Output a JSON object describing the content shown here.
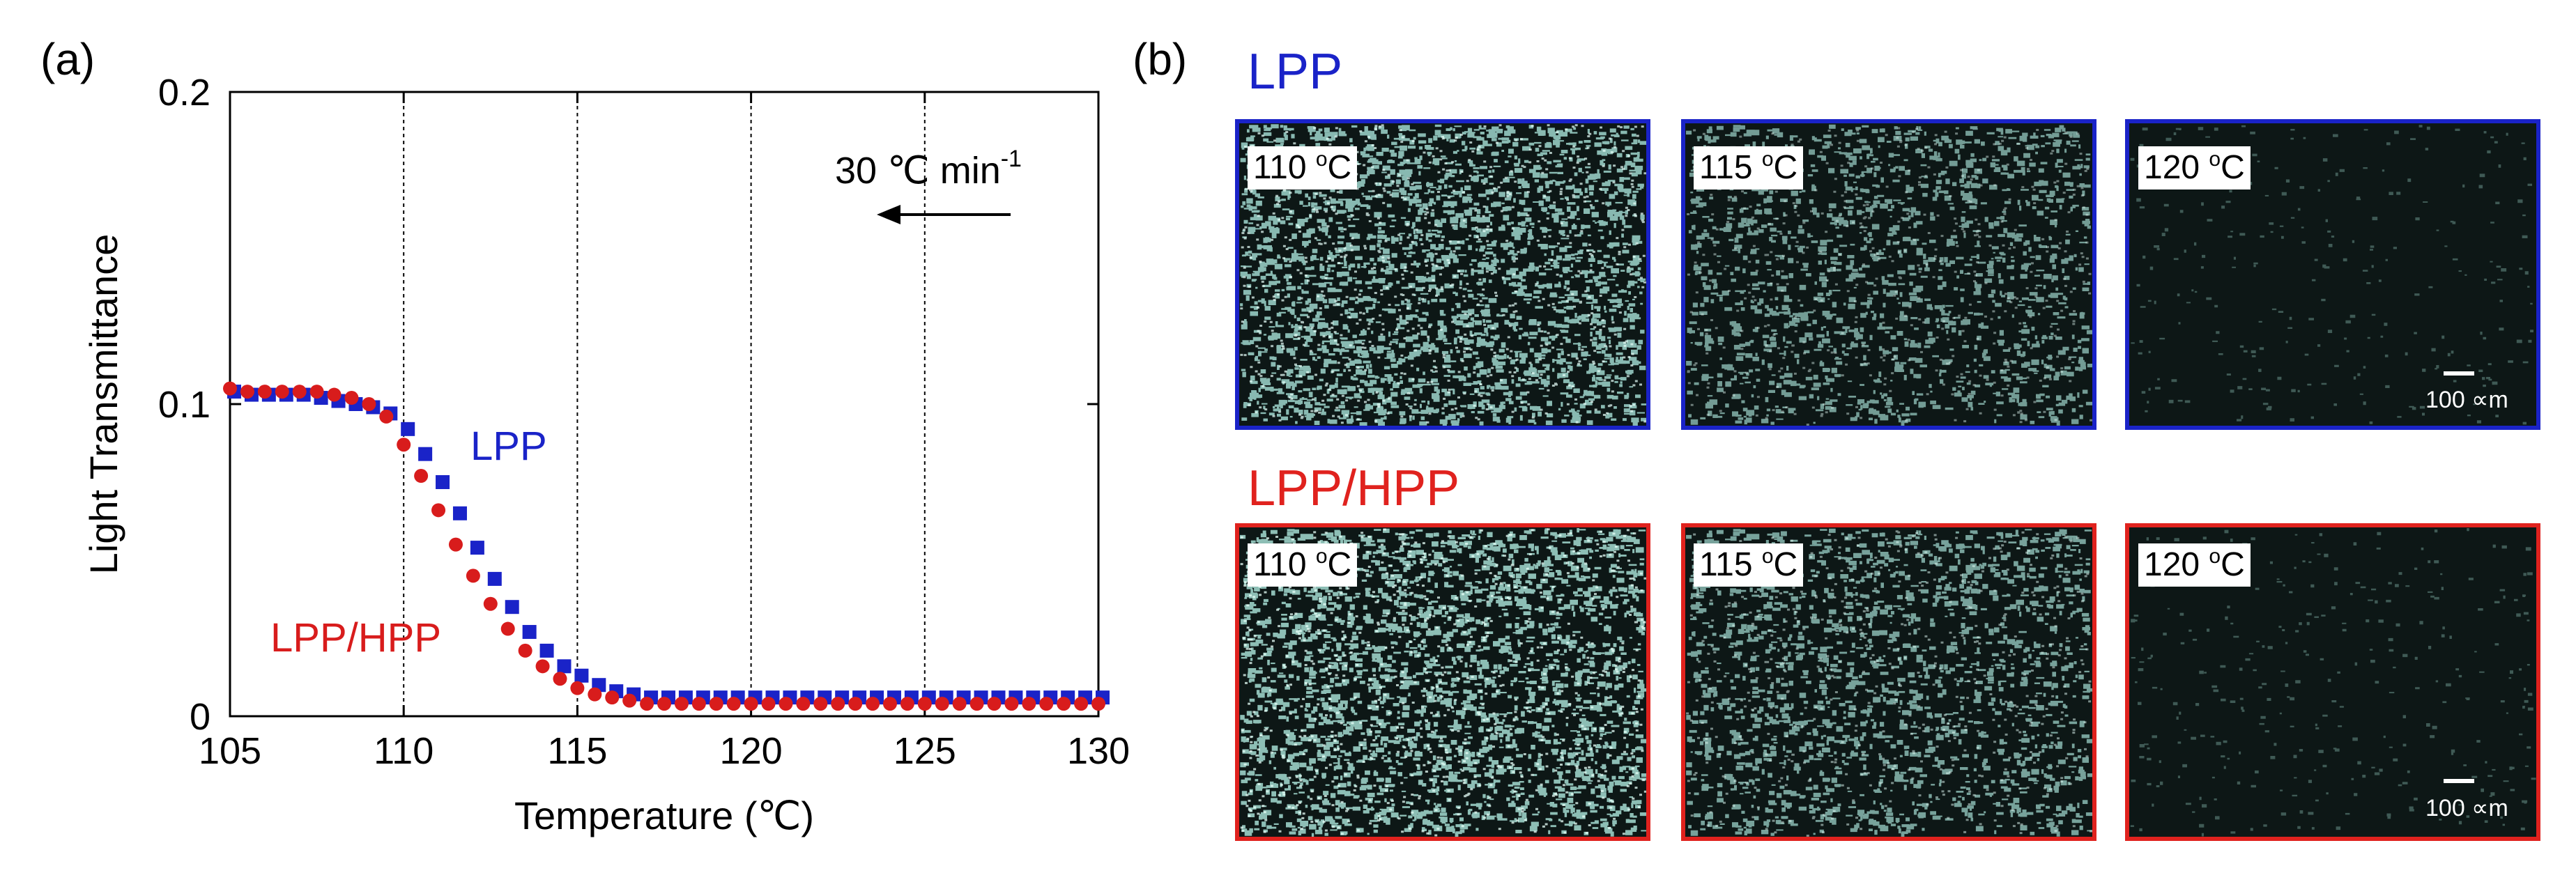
{
  "panel_a_label": "(a)",
  "panel_b_label": "(b)",
  "chart_data": {
    "type": "scatter",
    "xlabel": "Temperature (℃)",
    "ylabel": "Light Transmittance",
    "xlim": [
      105,
      130
    ],
    "ylim": [
      0,
      0.2
    ],
    "xticks": [
      105,
      110,
      115,
      120,
      125,
      130
    ],
    "xtick_labels": [
      "105",
      "110",
      "115",
      "120",
      "125",
      "130"
    ],
    "yticks": [
      0,
      0.1,
      0.2
    ],
    "ytick_labels": [
      "0",
      "0.1",
      "0.2"
    ],
    "grid_x": [
      110,
      115,
      120,
      125
    ],
    "annotation": "30 ℃ min",
    "annotation_sup": "-1",
    "annotation_arrow_direction": "decreasing temperature",
    "series": [
      {
        "name": "LPP",
        "label": "LPP",
        "color": "#1a23c8",
        "marker": "square",
        "x": [
          105.0,
          105.5,
          106.0,
          106.5,
          107.0,
          107.5,
          108.0,
          108.5,
          109.0,
          109.5,
          110.0,
          110.5,
          111.0,
          111.5,
          112.0,
          112.5,
          113.0,
          113.5,
          114.0,
          114.5,
          115.0,
          115.5,
          116.0,
          116.5,
          117.0,
          117.5,
          118.0,
          118.5,
          119.0,
          119.5,
          120.0,
          120.5,
          121.0,
          121.5,
          122.0,
          122.5,
          123.0,
          123.5,
          124.0,
          124.5,
          125.0,
          125.5,
          126.0,
          126.5,
          127.0,
          127.5,
          128.0,
          128.5,
          129.0,
          129.5,
          130.0
        ],
        "y": [
          0.104,
          0.103,
          0.103,
          0.103,
          0.103,
          0.102,
          0.101,
          0.1,
          0.099,
          0.097,
          0.092,
          0.084,
          0.075,
          0.065,
          0.054,
          0.044,
          0.035,
          0.027,
          0.021,
          0.016,
          0.013,
          0.01,
          0.008,
          0.007,
          0.006,
          0.006,
          0.006,
          0.006,
          0.006,
          0.006,
          0.006,
          0.006,
          0.006,
          0.006,
          0.006,
          0.006,
          0.006,
          0.006,
          0.006,
          0.006,
          0.006,
          0.006,
          0.006,
          0.006,
          0.006,
          0.006,
          0.006,
          0.006,
          0.006,
          0.006,
          0.006
        ]
      },
      {
        "name": "LPP/HPP",
        "label": "LPP/HPP",
        "color": "#d81c1c",
        "marker": "circle",
        "x": [
          105.0,
          105.5,
          106.0,
          106.5,
          107.0,
          107.5,
          108.0,
          108.5,
          109.0,
          109.5,
          110.0,
          110.5,
          111.0,
          111.5,
          112.0,
          112.5,
          113.0,
          113.5,
          114.0,
          114.5,
          115.0,
          115.5,
          116.0,
          116.5,
          117.0,
          117.5,
          118.0,
          118.5,
          119.0,
          119.5,
          120.0,
          120.5,
          121.0,
          121.5,
          122.0,
          122.5,
          123.0,
          123.5,
          124.0,
          124.5,
          125.0,
          125.5,
          126.0,
          126.5,
          127.0,
          127.5,
          128.0,
          128.5,
          129.0,
          129.5,
          130.0
        ],
        "y": [
          0.105,
          0.104,
          0.104,
          0.104,
          0.104,
          0.104,
          0.103,
          0.102,
          0.1,
          0.096,
          0.087,
          0.077,
          0.066,
          0.055,
          0.045,
          0.036,
          0.028,
          0.021,
          0.016,
          0.012,
          0.009,
          0.007,
          0.006,
          0.005,
          0.004,
          0.004,
          0.004,
          0.004,
          0.004,
          0.004,
          0.004,
          0.004,
          0.004,
          0.004,
          0.004,
          0.004,
          0.004,
          0.004,
          0.004,
          0.004,
          0.004,
          0.004,
          0.004,
          0.004,
          0.004,
          0.004,
          0.004,
          0.004,
          0.004,
          0.004,
          0.004
        ]
      }
    ]
  },
  "micrographs": {
    "rows": [
      {
        "title": "LPP",
        "color": "#1a23c8",
        "brightness": [
          0.9,
          0.55,
          0.08
        ],
        "panels": [
          {
            "temp": "110 ",
            "sup": "o",
            "unit": "C"
          },
          {
            "temp": "115 ",
            "sup": "o",
            "unit": "C"
          },
          {
            "temp": "120 ",
            "sup": "o",
            "unit": "C"
          }
        ],
        "scale_bar": "100 ∝m"
      },
      {
        "title": "LPP/HPP",
        "color": "#e0221e",
        "brightness": [
          0.95,
          0.62,
          0.1
        ],
        "panels": [
          {
            "temp": "110 ",
            "sup": "o",
            "unit": "C"
          },
          {
            "temp": "115 ",
            "sup": "o",
            "unit": "C"
          },
          {
            "temp": "120 ",
            "sup": "o",
            "unit": "C"
          }
        ],
        "scale_bar": "100 ∝m"
      }
    ]
  }
}
